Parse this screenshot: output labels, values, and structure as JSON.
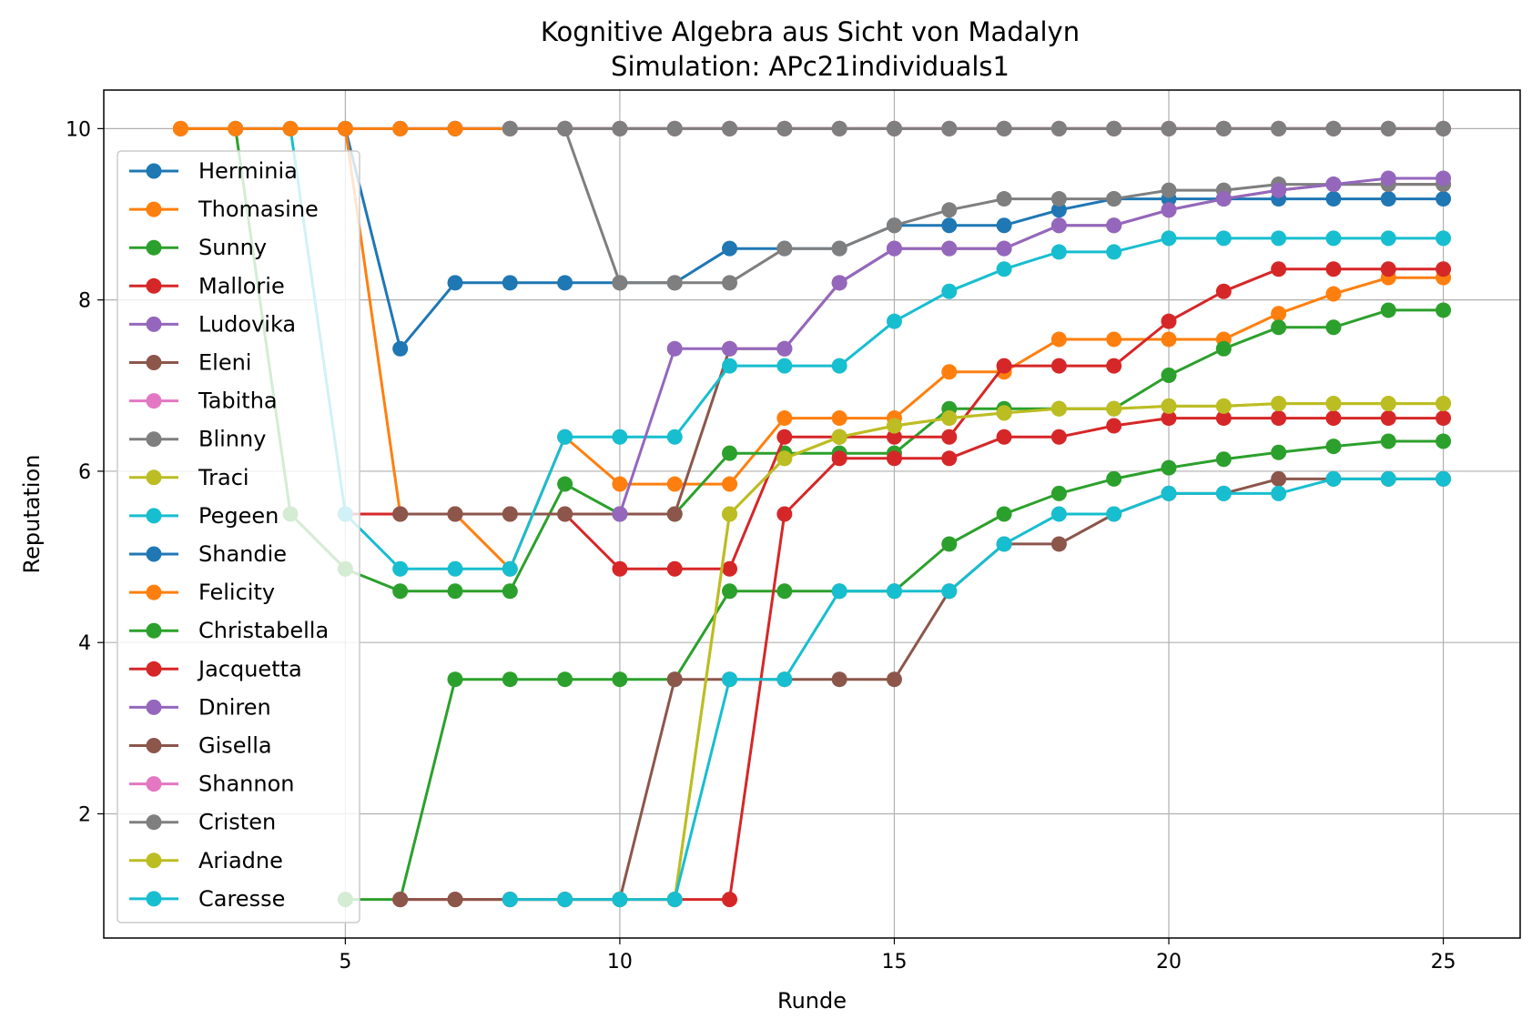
{
  "chart_data": {
    "type": "line",
    "title": "Kognitive Algebra aus Sicht von Madalyn",
    "subtitle": "Simulation: APc21individuals1",
    "xlabel": "Runde",
    "ylabel": "Reputation",
    "xlim": [
      0.6,
      26.4
    ],
    "ylim": [
      0.55,
      10.45
    ],
    "xticks": [
      5,
      10,
      15,
      20,
      25
    ],
    "yticks": [
      2,
      4,
      6,
      8,
      10
    ],
    "grid": true,
    "legend_position": "left",
    "series": [
      {
        "name": "Herminia",
        "color": "#1f77b4",
        "x": [
          2,
          3,
          4,
          5,
          6,
          7,
          8,
          9,
          10,
          11,
          12,
          13,
          14,
          15,
          16,
          17,
          18,
          19,
          20,
          21,
          22,
          23,
          24,
          25
        ],
        "y": [
          10,
          10,
          10,
          10,
          7.43,
          8.2,
          8.2,
          8.2,
          8.2,
          8.2,
          8.6,
          8.6,
          8.6,
          8.87,
          8.87,
          8.87,
          9.05,
          9.18,
          9.18,
          9.18,
          9.18,
          9.18,
          9.18,
          9.18
        ]
      },
      {
        "name": "Thomasine",
        "color": "#ff7f0e",
        "x": [
          2,
          3,
          4,
          5,
          6,
          7,
          8,
          9,
          10,
          11,
          12,
          13,
          14,
          15,
          16,
          17,
          18,
          19,
          20,
          21,
          22,
          23,
          24,
          25
        ],
        "y": [
          10,
          10,
          10,
          10,
          5.5,
          5.5,
          4.86,
          6.4,
          5.85,
          5.85,
          5.85,
          6.62,
          6.62,
          6.62,
          7.16,
          7.16,
          7.54,
          7.54,
          7.54,
          7.54,
          7.84,
          8.07,
          8.26,
          8.26
        ]
      },
      {
        "name": "Sunny",
        "color": "#2ca02c",
        "x": [
          3,
          4,
          5,
          6,
          7,
          8,
          9,
          10,
          11,
          12,
          13,
          14,
          15,
          16,
          17,
          18,
          19,
          20,
          21,
          22,
          23,
          24,
          25
        ],
        "y": [
          10,
          5.5,
          4.86,
          4.6,
          4.6,
          4.6,
          5.85,
          5.5,
          5.5,
          6.21,
          6.21,
          6.21,
          6.21,
          6.73,
          6.73,
          6.73,
          6.73,
          7.12,
          7.43,
          7.68,
          7.68,
          7.88,
          7.88
        ]
      },
      {
        "name": "Mallorie",
        "color": "#d62728",
        "x": [
          5,
          6,
          7,
          8,
          9,
          10,
          11,
          12,
          13,
          14,
          15,
          16,
          17,
          18,
          19,
          20,
          21,
          22,
          23,
          24,
          25
        ],
        "y": [
          5.5,
          5.5,
          5.5,
          5.5,
          5.5,
          4.86,
          4.86,
          4.86,
          6.4,
          6.4,
          6.4,
          6.4,
          7.23,
          7.23,
          7.23,
          7.75,
          8.1,
          8.36,
          8.36,
          8.36,
          8.36
        ]
      },
      {
        "name": "Ludovika",
        "color": "#9467bd",
        "x": [
          6,
          7,
          8,
          9,
          10,
          11,
          12,
          13,
          14,
          15,
          16,
          17,
          18,
          19,
          20,
          21,
          22,
          23,
          24,
          25
        ],
        "y": [
          10,
          10,
          10,
          10,
          10,
          10,
          10,
          10,
          10,
          10,
          10,
          10,
          10,
          10,
          10,
          10,
          10,
          10,
          10,
          10
        ]
      },
      {
        "name": "Eleni",
        "color": "#8c564b",
        "x": [
          6,
          7,
          8,
          9,
          10,
          11,
          12,
          13,
          14,
          15,
          16,
          17,
          18,
          19,
          20,
          21,
          22,
          23,
          24,
          25
        ],
        "y": [
          5.5,
          5.5,
          5.5,
          5.5,
          5.5,
          5.5,
          7.43,
          7.43,
          8.2,
          8.6,
          8.6,
          8.6,
          8.87,
          8.87,
          9.05,
          9.18,
          9.28,
          9.35,
          9.35,
          9.35
        ]
      },
      {
        "name": "Tabitha",
        "color": "#e377c2",
        "x": [
          7,
          8,
          9,
          10,
          11,
          12,
          13,
          14,
          15,
          16,
          17,
          18,
          19,
          20,
          21,
          22,
          23,
          24,
          25
        ],
        "y": [
          10,
          10,
          10,
          10,
          10,
          10,
          10,
          10,
          10,
          10,
          10,
          10,
          10,
          10,
          10,
          10,
          10,
          10,
          10
        ]
      },
      {
        "name": "Blinny",
        "color": "#7f7f7f",
        "x": [
          7,
          8,
          9,
          10,
          11,
          12,
          13,
          14,
          15,
          16,
          17,
          18,
          19,
          20,
          21,
          22,
          23,
          24,
          25
        ],
        "y": [
          10,
          10,
          10,
          8.2,
          8.2,
          8.2,
          8.6,
          8.6,
          8.87,
          9.05,
          9.18,
          9.18,
          9.18,
          9.28,
          9.28,
          9.35,
          9.35,
          9.35,
          9.35
        ]
      },
      {
        "name": "Traci",
        "color": "#bcbd22",
        "x": [
          11,
          12,
          13,
          14,
          15,
          16,
          17,
          18,
          19,
          20,
          21,
          22,
          23,
          24,
          25
        ],
        "y": [
          1,
          5.5,
          6.15,
          6.4,
          6.53,
          6.62,
          6.68,
          6.73,
          6.73,
          6.76,
          6.76,
          6.79,
          6.79,
          6.79,
          6.79
        ]
      },
      {
        "name": "Pegeen",
        "color": "#17becf",
        "x": [
          3,
          4,
          5,
          6,
          7,
          8,
          9,
          10,
          11,
          12,
          13,
          14,
          15,
          16,
          17,
          18,
          19,
          20,
          21,
          22,
          23,
          24,
          25
        ],
        "y": [
          10,
          10,
          5.5,
          4.86,
          4.86,
          4.86,
          6.4,
          6.4,
          6.4,
          7.23,
          7.23,
          7.23,
          7.75,
          8.1,
          8.36,
          8.56,
          8.56,
          8.72,
          8.72,
          8.72,
          8.72,
          8.72,
          8.72
        ]
      },
      {
        "name": "Shandie",
        "color": "#1f77b4",
        "x": [
          5,
          6,
          7,
          8,
          9,
          10,
          11,
          12,
          13,
          14,
          15,
          16,
          17,
          18,
          19,
          20,
          21,
          22,
          23,
          24,
          25
        ],
        "y": [
          10,
          10,
          10,
          10,
          10,
          10,
          10,
          10,
          10,
          10,
          10,
          10,
          10,
          10,
          10,
          10,
          10,
          10,
          10,
          10,
          10
        ]
      },
      {
        "name": "Felicity",
        "color": "#ff7f0e",
        "x": [
          2,
          3,
          4,
          5,
          6,
          7,
          8,
          9,
          10,
          11,
          12,
          13,
          14,
          15,
          16,
          17,
          18,
          19,
          20,
          21,
          22,
          23,
          24,
          25
        ],
        "y": [
          10,
          10,
          10,
          10,
          10,
          10,
          10,
          10,
          10,
          10,
          10,
          10,
          10,
          10,
          10,
          10,
          10,
          10,
          10,
          10,
          10,
          10,
          10,
          10
        ]
      },
      {
        "name": "Christabella",
        "color": "#2ca02c",
        "x": [
          5,
          6,
          7,
          8,
          9,
          10,
          11,
          12,
          13,
          14,
          15,
          16,
          17,
          18,
          19,
          20,
          21,
          22,
          23,
          24,
          25
        ],
        "y": [
          1,
          1,
          3.57,
          3.57,
          3.57,
          3.57,
          3.57,
          4.6,
          4.6,
          4.6,
          4.6,
          5.15,
          5.5,
          5.74,
          5.91,
          6.04,
          6.14,
          6.22,
          6.29,
          6.35,
          6.35
        ]
      },
      {
        "name": "Jacquetta",
        "color": "#d62728",
        "x": [
          6,
          7,
          8,
          9,
          10,
          11,
          12,
          13,
          14,
          15,
          16,
          17,
          18,
          19,
          20,
          21,
          22,
          23,
          24,
          25
        ],
        "y": [
          1,
          1,
          1,
          1,
          1,
          1,
          1,
          5.5,
          6.15,
          6.15,
          6.15,
          6.4,
          6.4,
          6.53,
          6.62,
          6.62,
          6.62,
          6.62,
          6.62,
          6.62
        ]
      },
      {
        "name": "Dniren",
        "color": "#9467bd",
        "x": [
          10,
          11,
          12,
          13,
          14,
          15,
          16,
          17,
          18,
          19,
          20,
          21,
          22,
          23,
          24,
          25
        ],
        "y": [
          5.5,
          7.43,
          7.43,
          7.43,
          8.2,
          8.6,
          8.6,
          8.6,
          8.87,
          8.87,
          9.05,
          9.18,
          9.28,
          9.35,
          9.42,
          9.42
        ]
      },
      {
        "name": "Gisella",
        "color": "#8c564b",
        "x": [
          6,
          7,
          8,
          9,
          10,
          11,
          12,
          13,
          14,
          15,
          16,
          17,
          18,
          19,
          20,
          21,
          22,
          23,
          24,
          25
        ],
        "y": [
          1,
          1,
          1,
          1,
          1,
          3.57,
          3.57,
          3.57,
          3.57,
          3.57,
          4.6,
          5.15,
          5.15,
          5.5,
          5.74,
          5.74,
          5.91,
          5.91,
          5.91,
          5.91
        ]
      },
      {
        "name": "Shannon",
        "color": "#e377c2",
        "x": [
          8,
          9,
          10,
          11,
          12,
          13,
          14,
          15,
          16,
          17,
          18,
          19,
          20,
          21,
          22,
          23,
          24,
          25
        ],
        "y": [
          10,
          10,
          10,
          10,
          10,
          10,
          10,
          10,
          10,
          10,
          10,
          10,
          10,
          10,
          10,
          10,
          10,
          10
        ]
      },
      {
        "name": "Cristen",
        "color": "#7f7f7f",
        "x": [
          8,
          9,
          10,
          11,
          12,
          13,
          14,
          15,
          16,
          17,
          18,
          19,
          20,
          21,
          22,
          23,
          24,
          25
        ],
        "y": [
          10,
          10,
          10,
          10,
          10,
          10,
          10,
          10,
          10,
          10,
          10,
          10,
          10,
          10,
          10,
          10,
          10,
          10
        ]
      },
      {
        "name": "Ariadne",
        "color": "#bcbd22",
        "x": [
          10,
          11,
          12,
          13,
          14,
          15,
          16,
          17,
          18,
          19,
          20,
          21,
          22,
          23,
          24,
          25
        ],
        "y": [
          1,
          1,
          5.5,
          6.15,
          6.4,
          6.53,
          6.62,
          6.68,
          6.73,
          6.73,
          6.76,
          6.76,
          6.79,
          6.79,
          6.79,
          6.79
        ]
      },
      {
        "name": "Caresse",
        "color": "#17becf",
        "x": [
          8,
          9,
          10,
          11,
          12,
          13,
          14,
          15,
          16,
          17,
          18,
          19,
          20,
          21,
          22,
          23,
          24,
          25
        ],
        "y": [
          1,
          1,
          1,
          1,
          3.57,
          3.57,
          4.6,
          4.6,
          4.6,
          5.15,
          5.5,
          5.5,
          5.74,
          5.74,
          5.74,
          5.91,
          5.91,
          5.91
        ]
      }
    ]
  }
}
